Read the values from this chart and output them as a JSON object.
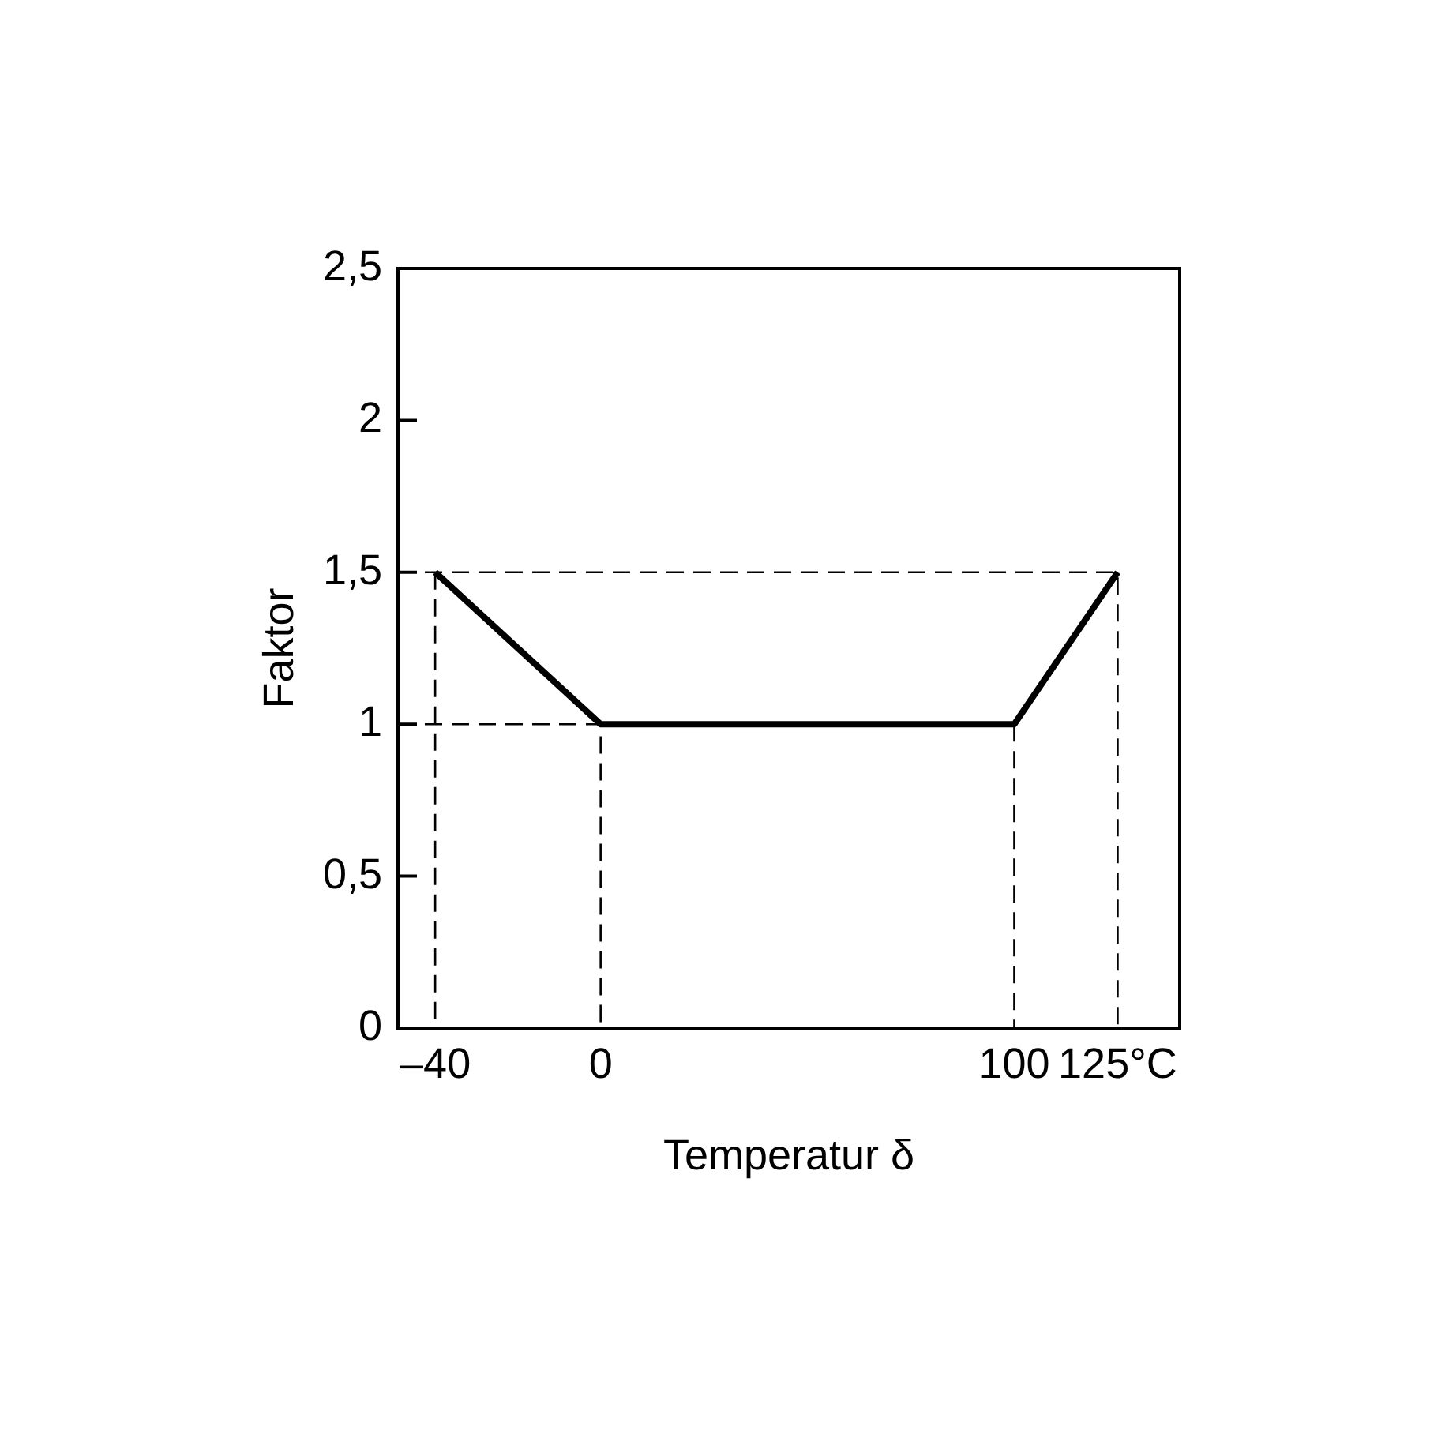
{
  "chart_data": {
    "type": "line",
    "xlabel": "Temperatur δ",
    "ylabel": "Faktor",
    "xlim": [
      -49,
      140
    ],
    "xticks": [
      {
        "value": -40,
        "label": "–40"
      },
      0,
      100,
      {
        "value": 125,
        "label": "125°C"
      }
    ],
    "ylim": [
      0,
      2.5
    ],
    "yticks": [
      0,
      {
        "value": 0.5,
        "label": "0,5"
      },
      1,
      {
        "value": 1.5,
        "label": "1,5"
      },
      2,
      {
        "value": 2.5,
        "label": "2,5"
      }
    ],
    "series": [
      {
        "color": "#000000",
        "x": [
          -40,
          0,
          100,
          125
        ],
        "values": [
          1.5,
          1,
          1,
          1.5
        ]
      },
      {
        "color": "#000000",
        "line_style": "dashed",
        "x": [
          -49,
          125,
          125
        ],
        "values": [
          1.5,
          1.5,
          0
        ]
      },
      {
        "color": "#000000",
        "line_style": "dashed",
        "x": [
          -40,
          -40
        ],
        "values": [
          1.5,
          0
        ]
      },
      {
        "color": "#000000",
        "line_style": "dashed",
        "x": [
          -49,
          0,
          0
        ],
        "values": [
          1,
          1,
          0
        ]
      },
      {
        "color": "#000000",
        "line_style": "dashed",
        "x": [
          100,
          100
        ],
        "values": [
          1,
          0
        ]
      }
    ]
  }
}
